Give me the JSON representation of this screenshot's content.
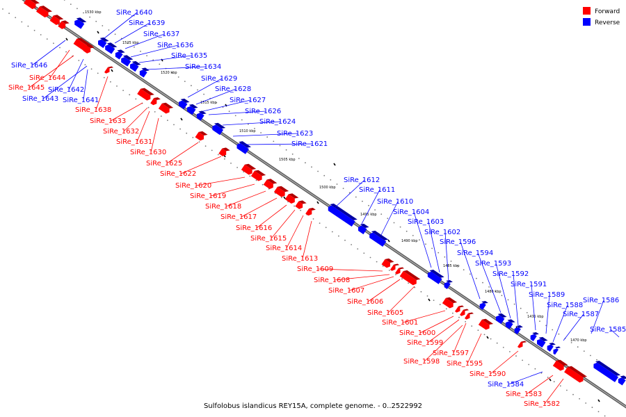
{
  "legend": {
    "items": [
      {
        "label": "Forward",
        "color": "#ff0000"
      },
      {
        "label": "Reverse",
        "color": "#0000ff"
      }
    ]
  },
  "caption": "Sulfolobus islandicus REY15A, complete genome. - 0..2522992",
  "scale_ticks": [
    "1530 kbp",
    "1525 kbp",
    "1520 kbp",
    "1515 kbp",
    "1510 kbp",
    "1505 kbp",
    "1500 kbp",
    "1495 kbp",
    "1490 kbp",
    "1485 kbp",
    "1480 kbp",
    "1475 kbp",
    "1470 kbp"
  ],
  "colors": {
    "forward": "#ff0000",
    "reverse": "#0000ff",
    "backbone": "#808080"
  },
  "reverse_genes": [
    "SiRe_1640",
    "SiRe_1639",
    "SiRe_1637",
    "SiRe_1636",
    "SiRe_1635",
    "SiRe_1634",
    "SiRe_1629",
    "SiRe_1628",
    "SiRe_1627",
    "SiRe_1626",
    "SiRe_1624",
    "SiRe_1623",
    "SiRe_1621",
    "SiRe_1612",
    "SiRe_1611",
    "SiRe_1610",
    "SiRe_1604",
    "SiRe_1603",
    "SiRe_1602",
    "SiRe_1596",
    "SiRe_1594",
    "SiRe_1593",
    "SiRe_1592",
    "SiRe_1591",
    "SiRe_1589",
    "SiRe_1588",
    "SiRe_1586",
    "SiRe_1587",
    "SiRe_1585",
    "SiRe_1646",
    "SiRe_1642",
    "SiRe_1643",
    "SiRe_1641",
    "SiRe_1584"
  ],
  "forward_genes": [
    "SiRe_1644",
    "SiRe_1645",
    "SiRe_1638",
    "SiRe_1633",
    "SiRe_1632",
    "SiRe_1631",
    "SiRe_1630",
    "SiRe_1625",
    "SiRe_1622",
    "SiRe_1620",
    "SiRe_1619",
    "SiRe_1618",
    "SiRe_1617",
    "SiRe_1616",
    "SiRe_1615",
    "SiRe_1614",
    "SiRe_1613",
    "SiRe_1609",
    "SiRe_1608",
    "SiRe_1607",
    "SiRe_1606",
    "SiRe_1605",
    "SiRe_1601",
    "SiRe_1600",
    "SiRe_1599",
    "SiRe_1597",
    "SiRe_1598",
    "SiRe_1595",
    "SiRe_1590",
    "SiRe_1583",
    "SiRe_1582"
  ]
}
